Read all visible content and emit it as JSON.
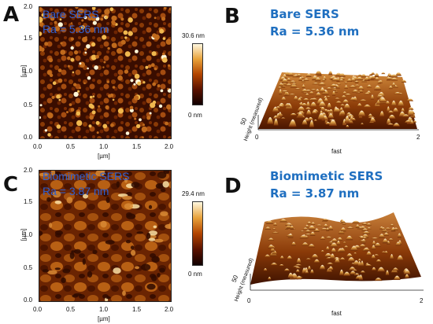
{
  "panels": [
    {
      "letter": "A",
      "title": "Bare SERS",
      "ra": "Ra = 5.36 nm",
      "colorbar_max": "30.6 nm",
      "colorbar_min": "0 nm",
      "y_ticks": [
        "2.0",
        "1.5",
        "1.0",
        "0.5",
        "0.0"
      ],
      "x_ticks": [
        "0.0",
        "0.5",
        "1.0",
        "1.5",
        "2.0"
      ],
      "x_label": "[µm]",
      "y_label": "[µm]"
    },
    {
      "letter": "B",
      "title": "Bare SERS",
      "ra": "Ra = 5.36 nm",
      "x_start": "0",
      "x_end": "2",
      "x_label": "fast",
      "height_label": "Height (measured)",
      "height_tick": "50"
    },
    {
      "letter": "C",
      "title": "Biomimetic SERS",
      "ra": "Ra = 3.87 nm",
      "colorbar_max": "29.4 nm",
      "colorbar_min": "0 nm",
      "y_ticks": [
        "2.0",
        "1.5",
        "1.0",
        "0.5",
        "0.0"
      ],
      "x_ticks": [
        "0.0",
        "0.5",
        "1.0",
        "1.5",
        "2.0"
      ],
      "x_label": "[µm]",
      "y_label": "[µm]"
    },
    {
      "letter": "D",
      "title": "Biomimetic SERS",
      "ra": "Ra = 3.87 nm",
      "x_start": "0",
      "x_end": "2",
      "x_label": "fast",
      "height_label": "Height (measured)",
      "height_tick": "50"
    }
  ],
  "colors": {
    "afm_dark": "#1a0500",
    "afm_mid": "#8a3a06",
    "afm_bright": "#f5d27a",
    "title_blue": "#1f6fc0"
  }
}
